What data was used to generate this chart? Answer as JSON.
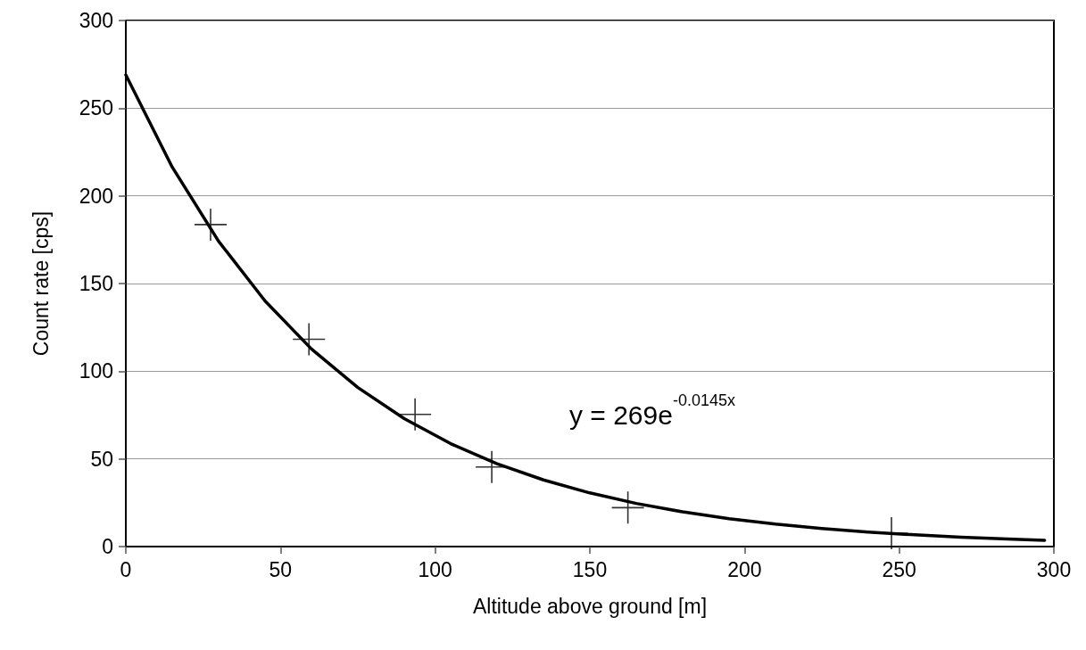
{
  "chart_data": {
    "type": "scatter",
    "xlabel": "Altitude above ground [m]",
    "ylabel": "Count rate [cps]",
    "annotations": [
      "y = 269e$^{-0.0145x}$"
    ],
    "xlim": [
      0,
      300
    ],
    "xticks": [
      0,
      50,
      100,
      150,
      200,
      250,
      300
    ],
    "ylim": [
      0,
      300
    ],
    "yticks": [
      0,
      50,
      100,
      150,
      200,
      250,
      300
    ],
    "grid": "y",
    "series": [
      {
        "type": "scatter",
        "marker": "cross",
        "color": "#000000",
        "x": [
          27.4,
          59.2,
          93.5,
          118.3,
          162.3,
          247.5
        ],
        "values": [
          183.6,
          118.2,
          75.4,
          45.4,
          22.2,
          7.6
        ]
      },
      {
        "type": "line",
        "marker": "none",
        "line_style": "solid",
        "color": "#000000",
        "x": [
          0,
          15,
          30,
          45,
          60,
          75,
          90,
          105,
          120,
          135,
          150,
          165,
          180,
          195,
          210,
          225,
          240,
          255,
          270,
          285,
          297
        ],
        "values": [
          269,
          216.4,
          174.1,
          140.1,
          112.7,
          90.7,
          73.0,
          58.7,
          47.2,
          38.0,
          30.6,
          24.6,
          19.8,
          15.9,
          12.8,
          10.3,
          8.3,
          6.7,
          5.4,
          4.3,
          3.6
        ]
      }
    ]
  }
}
